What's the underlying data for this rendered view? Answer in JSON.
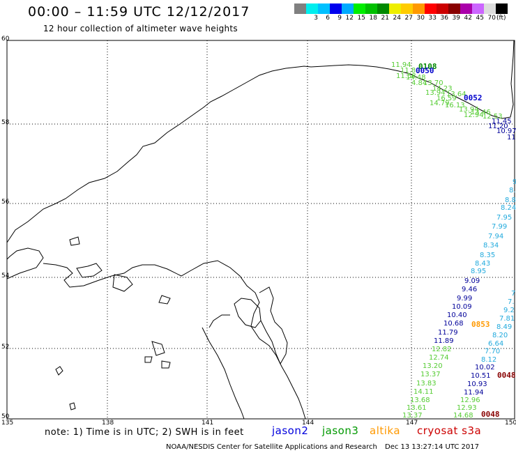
{
  "header": {
    "title": "00:00 – 11:59 UTC 12/12/2017",
    "subtitle": "12 hour collection of altimeter wave heights"
  },
  "color_scale": {
    "colors": [
      "#808080",
      "#00eeee",
      "#00c0ff",
      "#0000ee",
      "#00aaff",
      "#00ee00",
      "#00c000",
      "#008800",
      "#eeee00",
      "#ffcc00",
      "#ff9900",
      "#ff0000",
      "#cc0000",
      "#880000",
      "#aa00aa",
      "#cc66ff",
      "#dddddd",
      "#000000"
    ],
    "labels": [
      "",
      "3",
      "6",
      "9",
      "12",
      "15",
      "18",
      "21",
      "24",
      "27",
      "30",
      "33",
      "36",
      "39",
      "42",
      "45",
      "70"
    ],
    "unit": "(ft)"
  },
  "axes": {
    "lat_labels": [
      "60",
      "58",
      "56",
      "54",
      "52",
      "50"
    ],
    "lon_labels": [
      "135",
      "138",
      "141",
      "144",
      "147",
      "150"
    ]
  },
  "passes": [
    {
      "id": "0108",
      "color": "#008800"
    },
    {
      "id": "0050",
      "color": "#0000cc"
    },
    {
      "id": "0052",
      "color": "#0000cc"
    },
    {
      "id": "0853",
      "color": "#ff9900"
    },
    {
      "id": "0048",
      "color": "#880000"
    },
    {
      "id": "0048",
      "color": "#880000"
    }
  ],
  "wave_points": {
    "green_top": [
      "11.94",
      "11.80",
      "11.58",
      "14.48",
      "4.84",
      "13.70",
      "14.23",
      "13.94",
      "13.64",
      "16.59",
      "14.79",
      "16.13",
      "13.94",
      "13.46",
      "12.53",
      "12.94"
    ],
    "blue_top": [
      "11.45",
      "11.20",
      "10.97",
      "11"
    ],
    "cyan_right": [
      "9",
      "8.",
      "8.8",
      "8.24",
      "7.95",
      "7.99",
      "7.94",
      "8.34",
      "8.35",
      "8.43",
      "8.95"
    ],
    "blue_mid": [
      "9.09",
      "9.46",
      "9.99",
      "10.09",
      "10.40",
      "10.68",
      "11.79",
      "11.89"
    ],
    "green_bottom": [
      "12.82",
      "12.74",
      "13.20",
      "13.37",
      "13.83",
      "14.11",
      "13.68",
      "13.61",
      "13.37"
    ],
    "cyan_bottom": [
      "7.",
      "7.",
      "9.2",
      "7.81",
      "8.49",
      "8.20",
      "6.64",
      "7.70",
      "8.12"
    ],
    "blue_bottom": [
      "10.02",
      "10.51",
      "10.93",
      "11.94"
    ],
    "green_bottom2": [
      "12.96",
      "12.93",
      "14.68"
    ]
  },
  "footer": {
    "note": "note: 1) Time is in UTC; 2) SWH is in feet",
    "legend": [
      {
        "name": "jason2",
        "color": "#0000dd"
      },
      {
        "name": "jason3",
        "color": "#009900"
      },
      {
        "name": "altika",
        "color": "#ff9900"
      },
      {
        "name": "cryosat s3a",
        "color": "#cc0000"
      }
    ],
    "credit": "NOAA/NESDIS Center for Satellite Applications and Research",
    "timestamp": "Dec 13 13:27:14 UTC 2017"
  }
}
